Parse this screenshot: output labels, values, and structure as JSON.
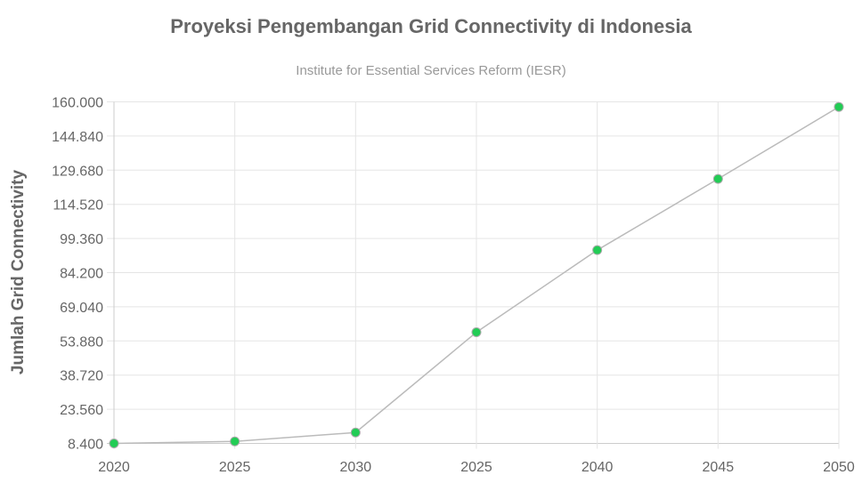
{
  "chart_data": {
    "type": "line",
    "title": "Proyeksi Pengembangan Grid Connectivity di Indonesia",
    "subtitle": "Institute for Essential Services Reform (IESR)",
    "xlabel": "",
    "ylabel": "Jumlah Grid Connectivity",
    "categories": [
      "2020",
      "2025",
      "2030",
      "2025",
      "2040",
      "2045",
      "2050"
    ],
    "values": [
      8400,
      9300,
      13250,
      57750,
      94200,
      125800,
      157750
    ],
    "yticks": [
      "8.400",
      "23.560",
      "38.720",
      "53.880",
      "69.040",
      "84.200",
      "99.360",
      "114.520",
      "129.680",
      "144.840",
      "160.000"
    ],
    "ylim": [
      8400,
      160000
    ],
    "grid": true,
    "colors": {
      "line": "#bbbbbb",
      "point": "#22cc55",
      "point_border": "#aaaaaa",
      "grid": "#e5e5e5"
    }
  }
}
